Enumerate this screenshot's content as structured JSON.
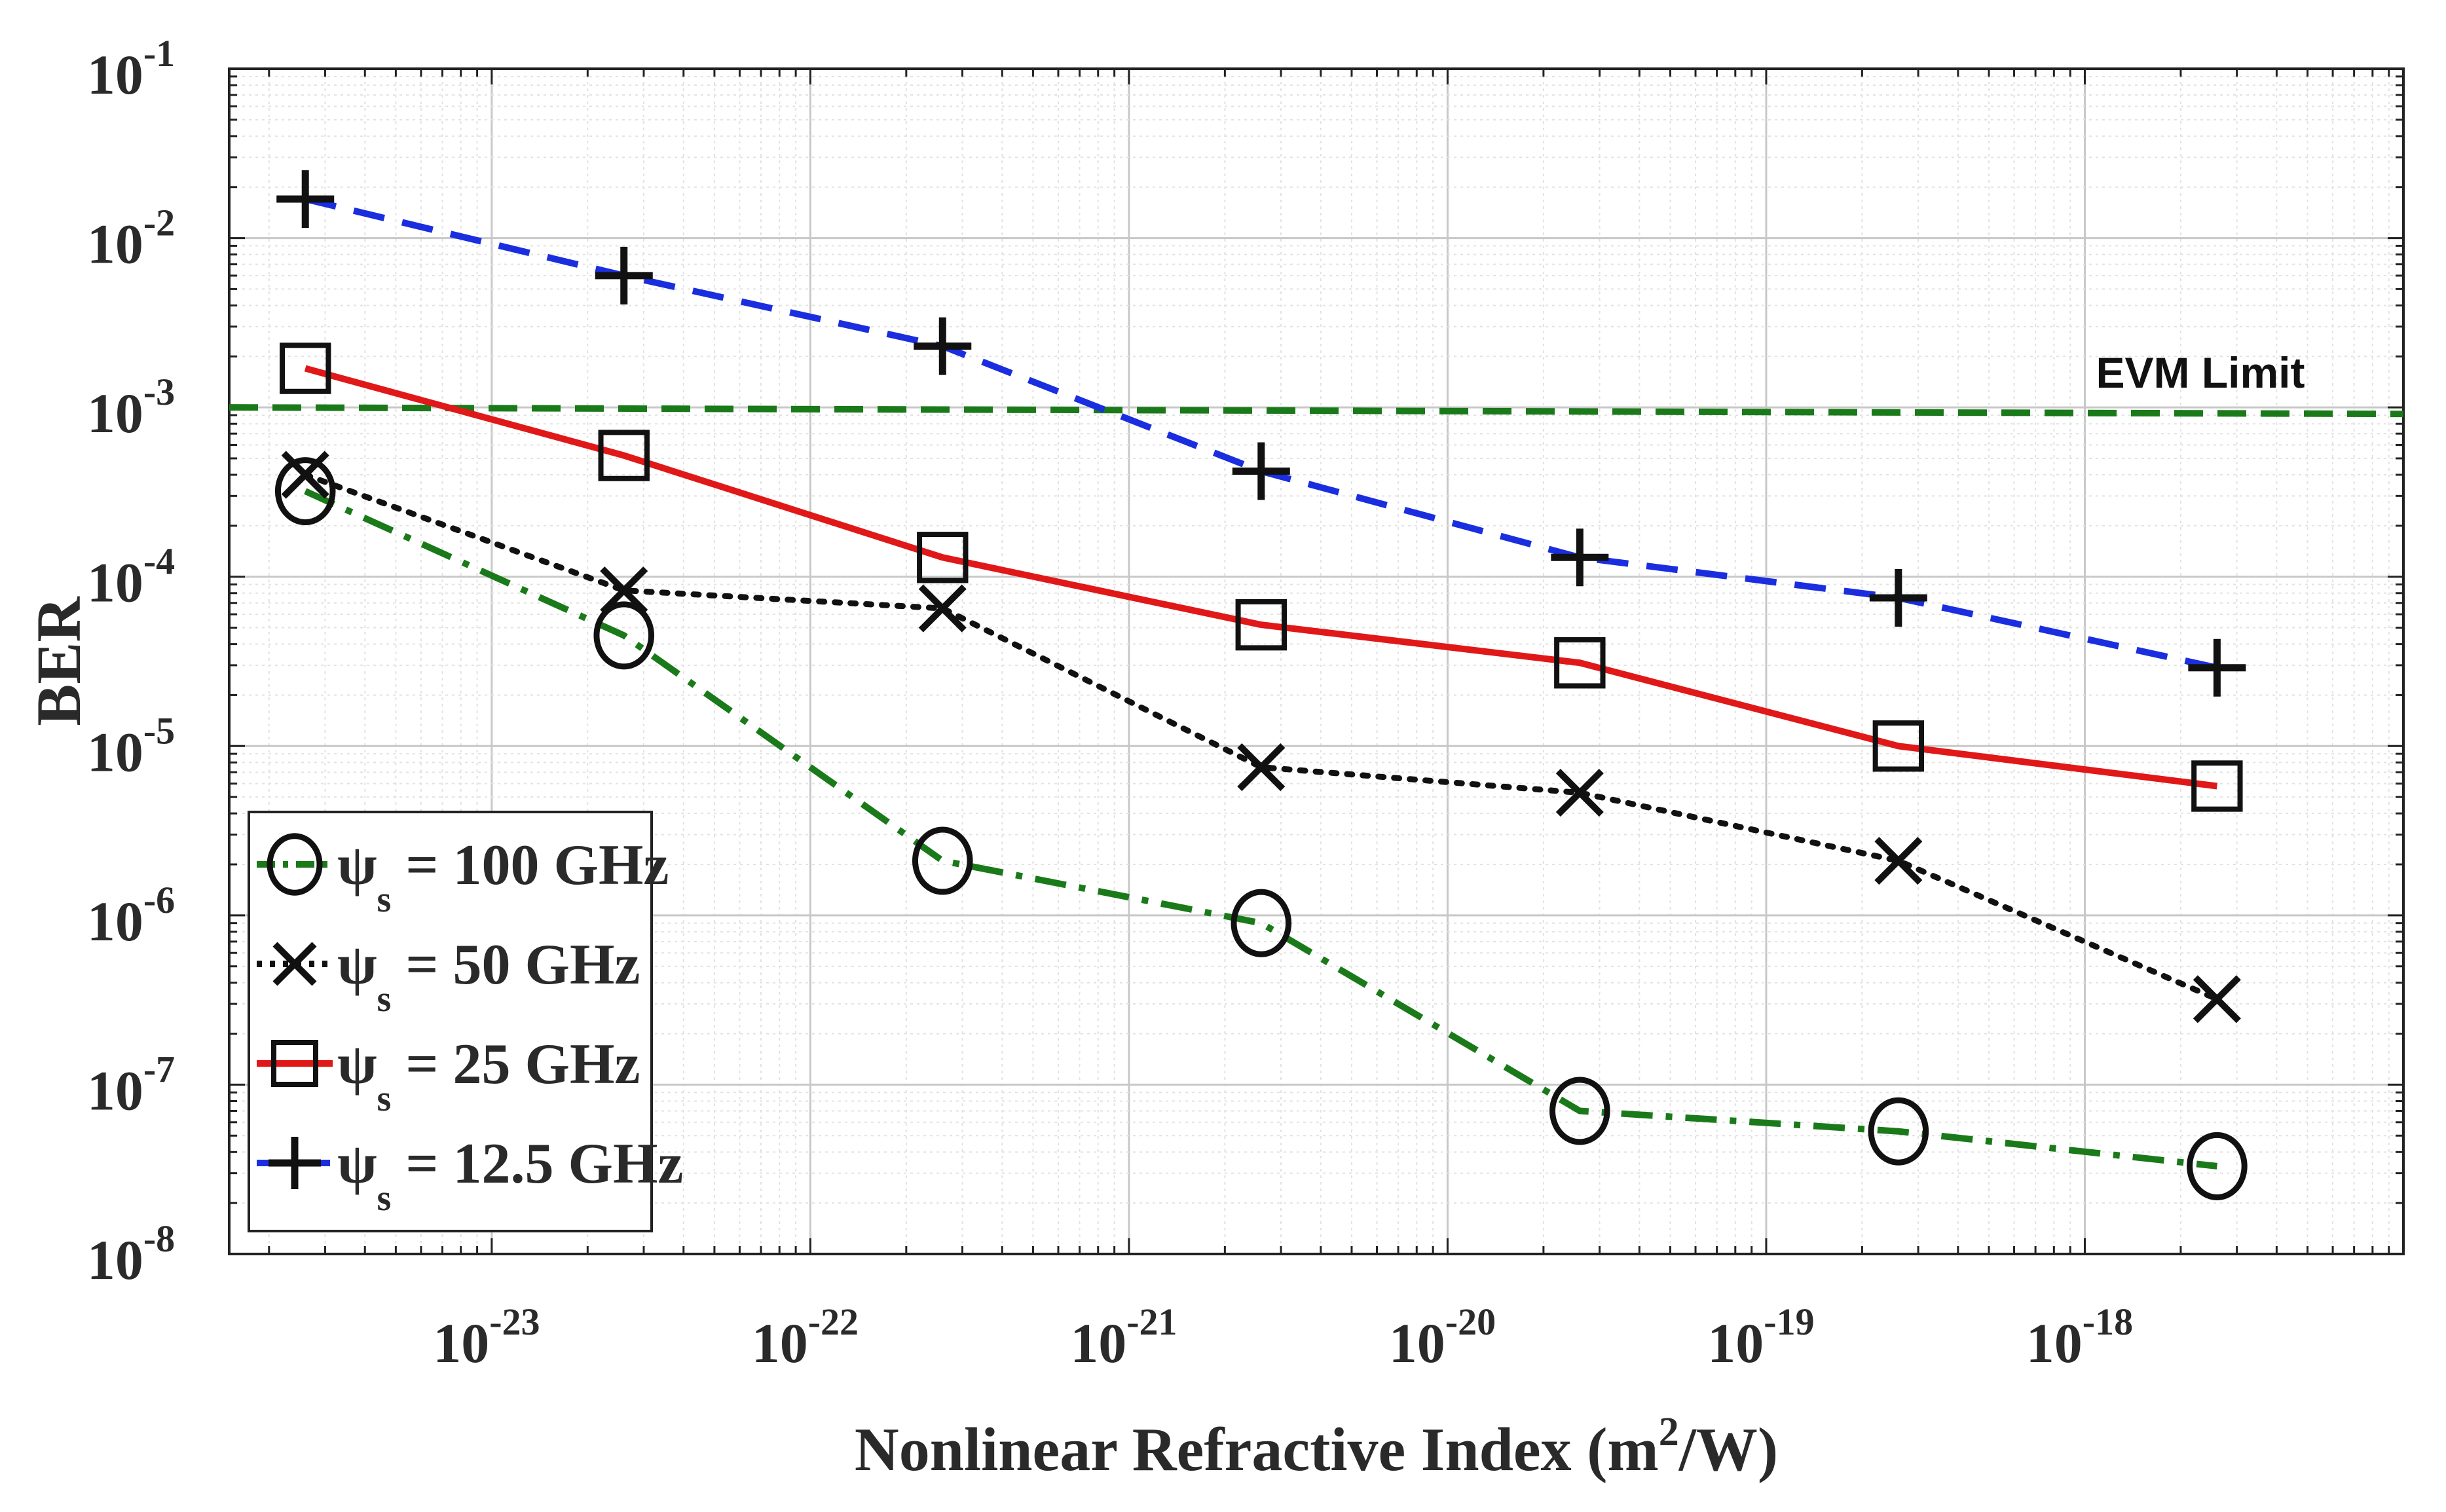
{
  "chart_data": {
    "type": "line",
    "title": "",
    "xlabel": "Nonlinear Refractive Index (m²/W)",
    "xlabel_main": "Nonlinear Refractive Index (m",
    "xlabel_sup": "2",
    "xlabel_end": "/W)",
    "ylabel": "BER",
    "xscale": "log",
    "yscale": "log",
    "xlim": [
      1.5e-24,
      1e-17
    ],
    "ylim": [
      1e-08,
      0.1
    ],
    "grid": true,
    "x": [
      2.6e-24,
      2.6e-23,
      2.6e-22,
      2.6e-21,
      2.6e-20,
      2.6e-19,
      2.6e-18
    ],
    "x_ticks": [
      {
        "value": 1e-23,
        "base": "10",
        "exp": "-23"
      },
      {
        "value": 1e-22,
        "base": "10",
        "exp": "-22"
      },
      {
        "value": 1e-21,
        "base": "10",
        "exp": "-21"
      },
      {
        "value": 1e-20,
        "base": "10",
        "exp": "-20"
      },
      {
        "value": 1e-19,
        "base": "10",
        "exp": "-19"
      },
      {
        "value": 1e-18,
        "base": "10",
        "exp": "-18"
      }
    ],
    "y_ticks": [
      {
        "value": 0.1,
        "base": "10",
        "exp": "-1"
      },
      {
        "value": 0.01,
        "base": "10",
        "exp": "-2"
      },
      {
        "value": 0.001,
        "base": "10",
        "exp": "-3"
      },
      {
        "value": 0.0001,
        "base": "10",
        "exp": "-4"
      },
      {
        "value": 1e-05,
        "base": "10",
        "exp": "-5"
      },
      {
        "value": 1e-06,
        "base": "10",
        "exp": "-6"
      },
      {
        "value": 1e-07,
        "base": "10",
        "exp": "-7"
      },
      {
        "value": 1e-08,
        "base": "10",
        "exp": "-8"
      }
    ],
    "series": [
      {
        "name": "ψs = 100 GHz",
        "legend_symbol": "ψ",
        "legend_sub": "s",
        "legend_text": " = 100 GHz",
        "color": "#1a7a1a",
        "dash": "dashdot",
        "marker": "circle",
        "values": [
          0.00032,
          4.5e-05,
          2.1e-06,
          9e-07,
          7e-08,
          5.3e-08,
          3.3e-08
        ]
      },
      {
        "name": "ψs = 50 GHz",
        "legend_symbol": "ψ",
        "legend_sub": "s",
        "legend_text": " = 50 GHz",
        "color": "#111111",
        "dash": "dotted",
        "marker": "x",
        "values": [
          0.0004,
          8.3e-05,
          6.5e-05,
          7.5e-06,
          5.3e-06,
          2.1e-06,
          3.2e-07
        ]
      },
      {
        "name": "ψs = 25 GHz",
        "legend_symbol": "ψ",
        "legend_sub": "s",
        "legend_text": " = 25 GHz",
        "color": "#e01818",
        "dash": "solid",
        "marker": "square",
        "values": [
          0.0017,
          0.00052,
          0.00013,
          5.2e-05,
          3.1e-05,
          1e-05,
          5.8e-06
        ]
      },
      {
        "name": "ψs = 12.5 GHz",
        "legend_symbol": "ψ",
        "legend_sub": "s",
        "legend_text": " = 12.5 GHz",
        "color": "#1a2ee0",
        "dash": "dashed",
        "marker": "plus",
        "values": [
          0.017,
          0.006,
          0.0023,
          0.00042,
          0.00013,
          7.5e-05,
          2.9e-05
        ]
      }
    ],
    "reference_line": {
      "label": "EVM Limit",
      "y": 0.001,
      "color": "#1a7a1a",
      "dash": "dashed"
    },
    "legend_position": "bottom-left"
  }
}
